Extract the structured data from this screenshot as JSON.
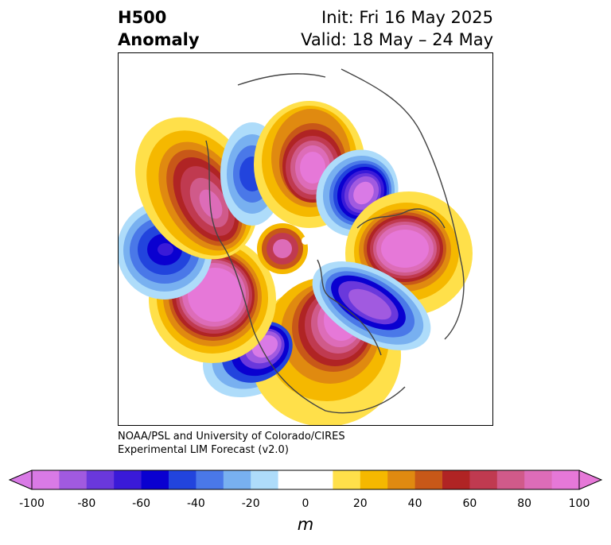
{
  "title": {
    "left_line1": "H500",
    "left_line2": "Anomaly",
    "right_line1": "Init: Fri 16 May 2025",
    "right_line2": "Valid: 18 May – 24 May"
  },
  "credit": {
    "line1": "NOAA/PSL and University of Colorado/CIRES",
    "line2": "Experimental LIM Forecast (v2.0)"
  },
  "colorbar": {
    "units": "m",
    "ticks": [
      "-100",
      "-80",
      "-60",
      "-40",
      "-20",
      "0",
      "20",
      "40",
      "60",
      "80",
      "100"
    ],
    "colors": [
      "#d97ae6",
      "#a15ae0",
      "#6a38dc",
      "#3a1ad8",
      "#0a00d0",
      "#2244dd",
      "#4a78e8",
      "#78b0f0",
      "#aedcfa",
      "#ffffff",
      "#ffffff",
      "#ffe04a",
      "#f5b800",
      "#e08a10",
      "#c85818",
      "#b02424",
      "#c03a50",
      "#d05a8a",
      "#dd6cb8",
      "#e678d8"
    ],
    "extend_low_color": "#d97ae6",
    "extend_high_color": "#e678d8"
  },
  "map": {
    "projection": "polar stereographic, Northern Hemisphere",
    "anomaly_centers": [
      {
        "sign": "positive",
        "location": "Gulf of Alaska / eastern North Pacific"
      },
      {
        "sign": "positive",
        "location": "East Siberia"
      },
      {
        "sign": "positive",
        "location": "Arctic Ocean"
      },
      {
        "sign": "positive",
        "location": "Europe / Scandinavia"
      },
      {
        "sign": "positive",
        "location": "central Pacific"
      },
      {
        "sign": "positive",
        "location": "central/eastern United States"
      },
      {
        "sign": "negative",
        "location": "Kamchatka / Bering Sea"
      },
      {
        "sign": "negative",
        "location": "western North Pacific"
      },
      {
        "sign": "negative",
        "location": "Russia / Siberia"
      },
      {
        "sign": "negative",
        "location": "North Atlantic / Greenland"
      },
      {
        "sign": "negative",
        "location": "southwestern United States"
      }
    ]
  }
}
